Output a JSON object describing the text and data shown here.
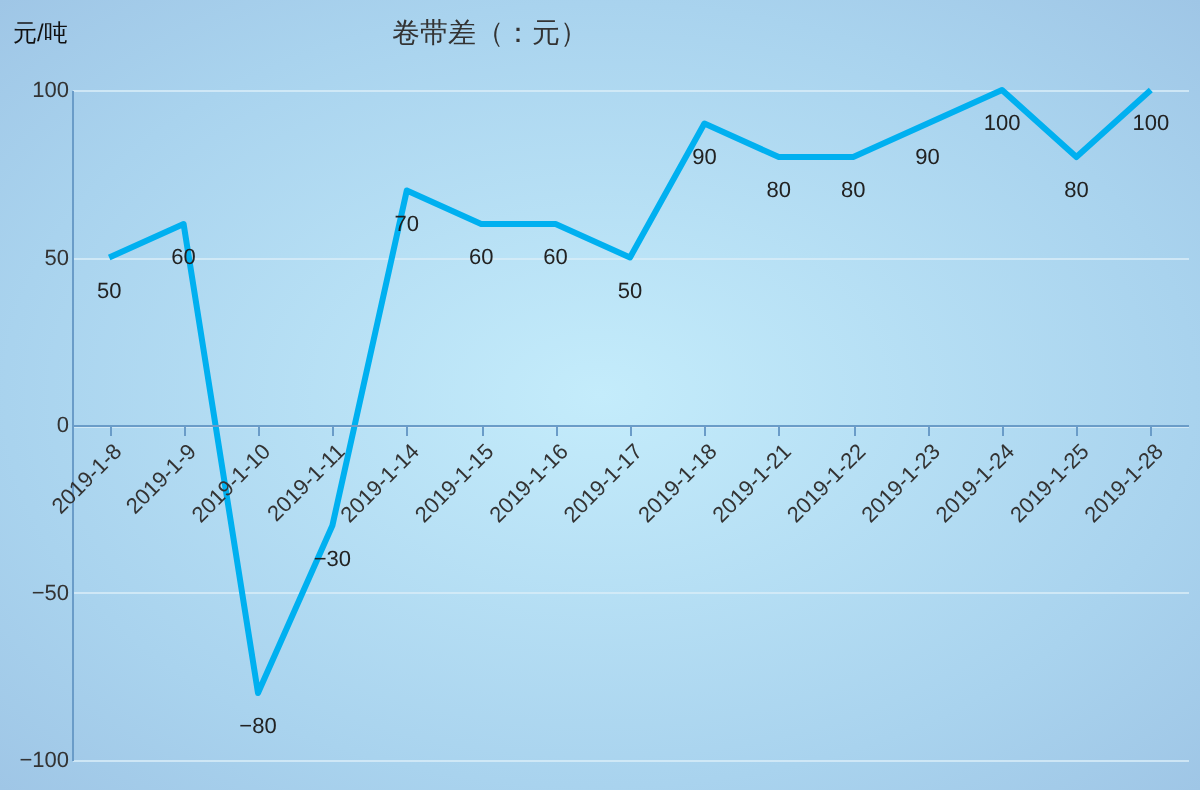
{
  "chart_data": {
    "type": "line",
    "title": "卷带差（：元）",
    "ylabel": "元/吨",
    "categories": [
      "2019-1-8",
      "2019-1-9",
      "2019-1-10",
      "2019-1-11",
      "2019-1-14",
      "2019-1-15",
      "2019-1-16",
      "2019-1-17",
      "2019-1-18",
      "2019-1-21",
      "2019-1-22",
      "2019-1-23",
      "2019-1-24",
      "2019-1-25",
      "2019-1-28"
    ],
    "series": [
      {
        "color": "#00b0f0",
        "values": [
          50,
          60,
          -80,
          -30,
          70,
          60,
          60,
          50,
          90,
          80,
          80,
          90,
          100,
          80,
          100
        ]
      }
    ],
    "ylim": [
      -100,
      100
    ],
    "yticks": [
      -100,
      -50,
      0,
      50,
      100
    ],
    "grid": "y",
    "data_labels": true,
    "marker": "none",
    "line_style": "solid"
  }
}
